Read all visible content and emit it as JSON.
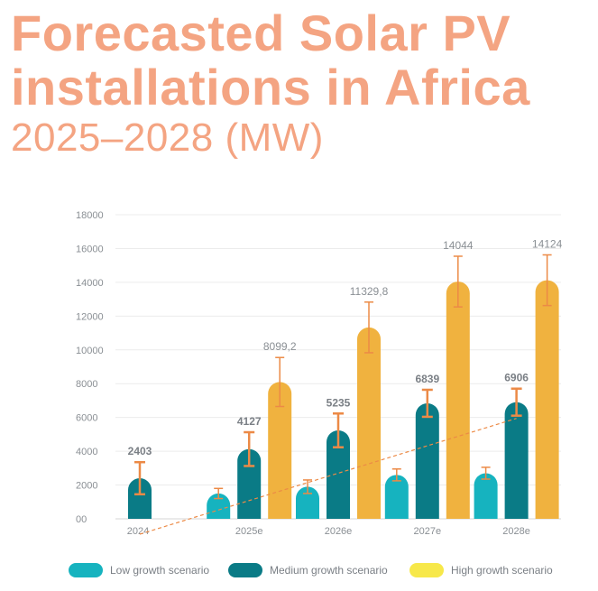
{
  "title": {
    "line1": "Forecasted Solar PV",
    "line2": "installations in Africa",
    "line3": "2025–2028 (MW)"
  },
  "colors": {
    "low": "#16b3bf",
    "medium": "#0a7b86",
    "high": "#f0b23f",
    "error": "#ec8a46",
    "title": "#f4a482"
  },
  "legend": [
    {
      "label": "Low growth scenario",
      "color": "#16b3bf"
    },
    {
      "label": "Medium growth scenario",
      "color": "#0a7b86"
    },
    {
      "label": "High growth scenario",
      "color": "#f7e84a"
    }
  ],
  "chart_data": {
    "type": "bar",
    "title": "Forecasted Solar PV installations in Africa 2025–2028 (MW)",
    "categories": [
      "2024",
      "2025e",
      "2026e",
      "2027e",
      "2028e"
    ],
    "yticks": [
      "00",
      "2000",
      "4000",
      "6000",
      "8000",
      "10000",
      "12000",
      "14000",
      "16000",
      "18000"
    ],
    "ylim": [
      0,
      18000
    ],
    "grid": true,
    "trendline": "dashed, through medium growth scenario",
    "legend_position": "bottom",
    "series": [
      {
        "name": "Low growth scenario",
        "values": [
          null,
          1500,
          1900,
          2600,
          2700
        ],
        "errors": [
          null,
          300,
          400,
          350,
          350
        ],
        "labels": [
          null,
          null,
          null,
          null,
          null
        ]
      },
      {
        "name": "Medium growth scenario",
        "values": [
          2403,
          4127,
          5235,
          6839,
          6906
        ],
        "errors": [
          950,
          1000,
          1000,
          800,
          800
        ],
        "labels": [
          "2403",
          "4127",
          "5235",
          "6839",
          "6906"
        ]
      },
      {
        "name": "High growth scenario",
        "values": [
          null,
          8099.2,
          11329.8,
          14044,
          14124
        ],
        "errors": [
          null,
          1450,
          1500,
          1500,
          1500
        ],
        "labels": [
          null,
          "8099,2",
          "11329,8",
          "14044",
          "14124"
        ]
      }
    ]
  }
}
